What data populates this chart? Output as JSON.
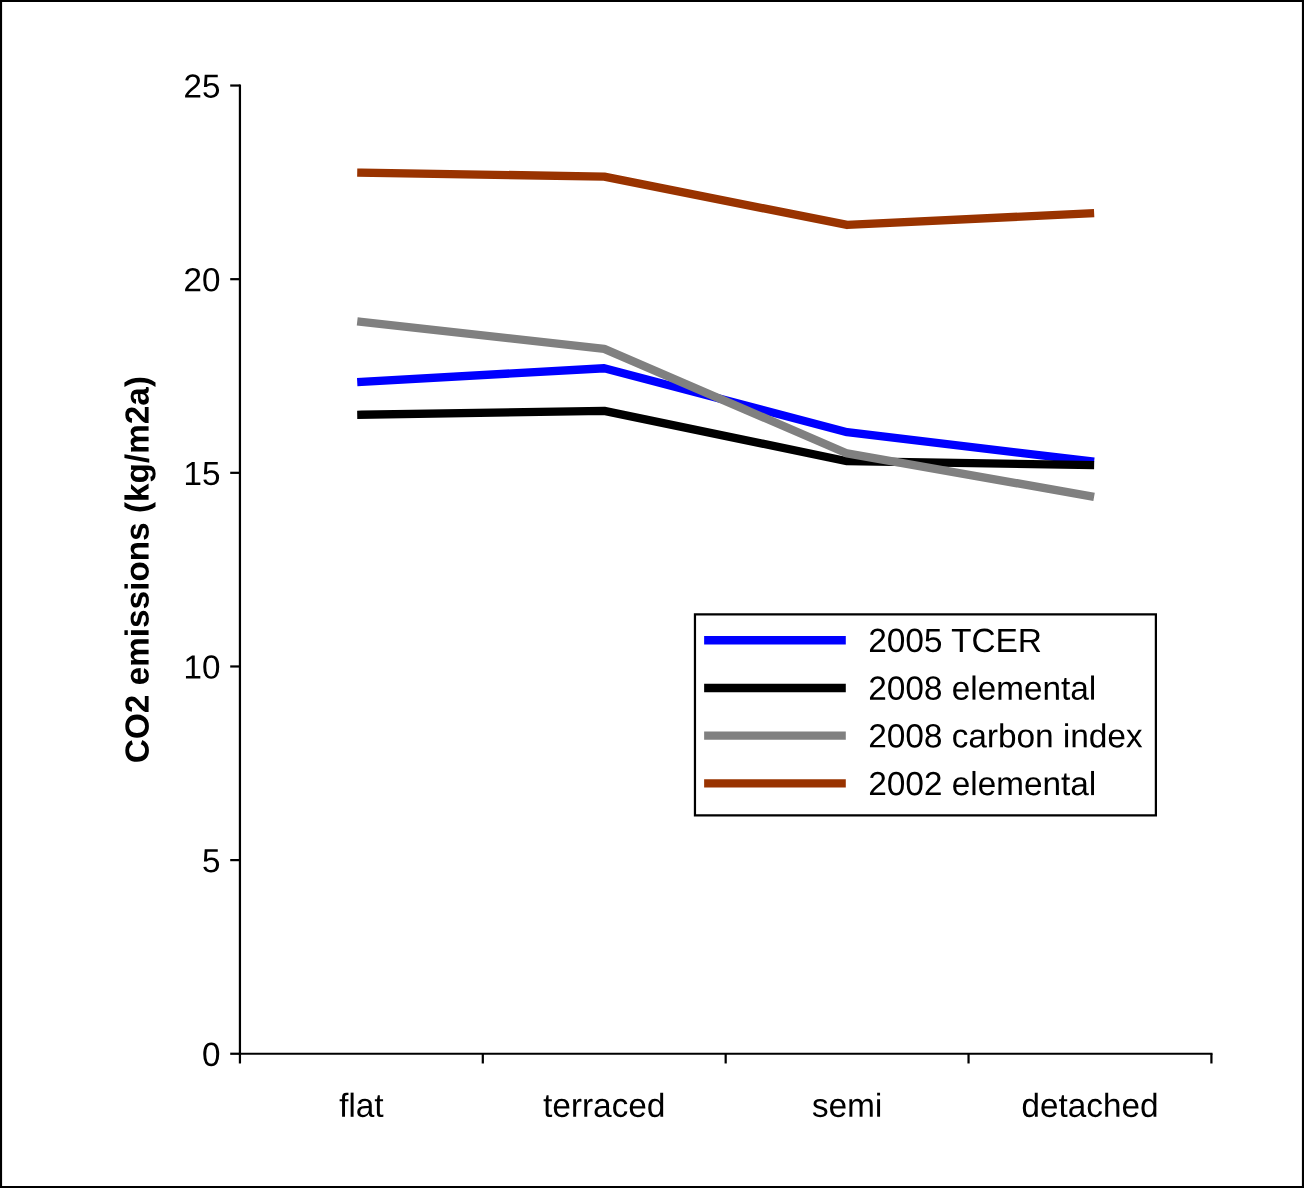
{
  "chart_data": {
    "type": "line",
    "ylabel": "CO2 emissions (kg/m2a)",
    "categories": [
      "flat",
      "terraced",
      "semi",
      "detached"
    ],
    "series": [
      {
        "name": "2005 TCER",
        "color": "#0000ff",
        "values": [
          17.35,
          17.7,
          16.05,
          15.3
        ]
      },
      {
        "name": "2008 elemental",
        "color": "#000000",
        "values": [
          16.5,
          16.6,
          15.3,
          15.2
        ]
      },
      {
        "name": "2008 carbon index",
        "color": "#808080",
        "values": [
          18.9,
          18.2,
          15.5,
          14.4
        ]
      },
      {
        "name": "2002 elemental",
        "color": "#993300",
        "values": [
          22.75,
          22.65,
          21.4,
          21.7
        ]
      }
    ],
    "ylim": [
      0,
      25
    ],
    "yticks": [
      0,
      5,
      10,
      15,
      20,
      25
    ],
    "grid": false,
    "legend": "right",
    "marker": "none",
    "line_style": "solid"
  }
}
